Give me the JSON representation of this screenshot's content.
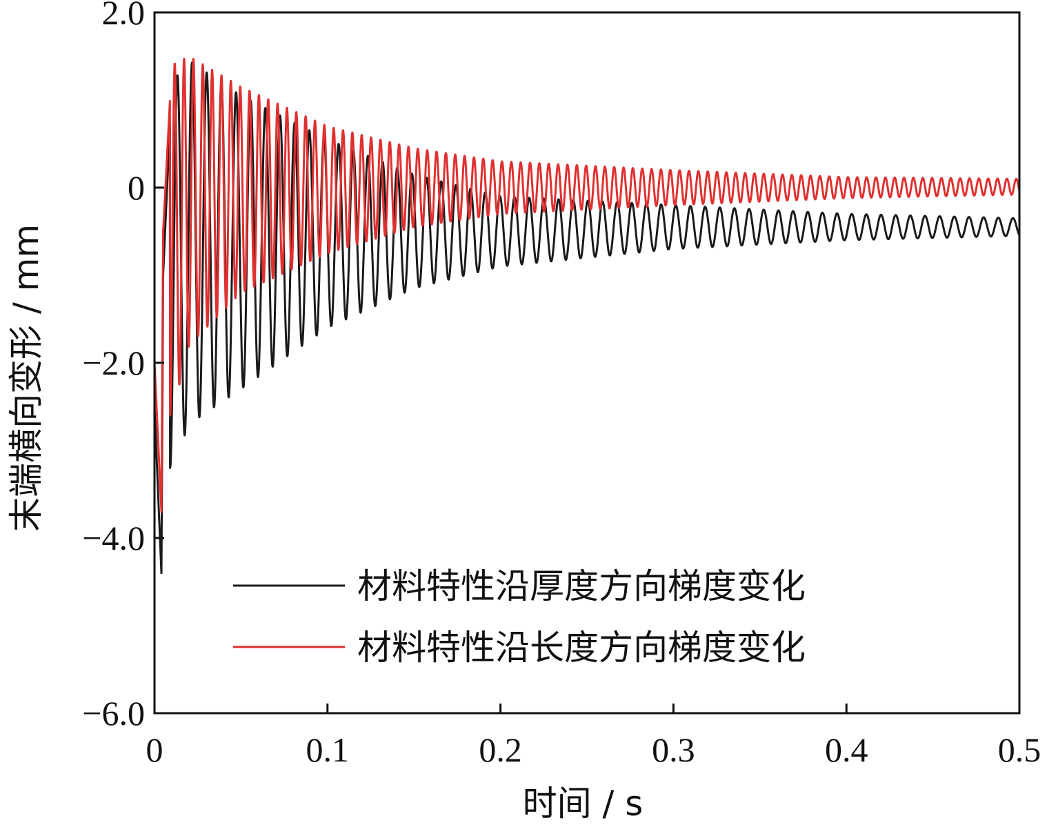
{
  "chart_data": {
    "type": "line",
    "title": "",
    "xlabel": "时间 / s",
    "ylabel": "末端横向变形 / mm",
    "xlim": [
      0,
      0.5
    ],
    "ylim": [
      -6.0,
      2.0
    ],
    "x_ticks": [
      "0",
      "0.1",
      "0.2",
      "0.3",
      "0.4",
      "0.5"
    ],
    "y_ticks": [
      "2.0",
      "0",
      "−2.0",
      "−4.0",
      "−6.0"
    ],
    "grid": false,
    "legend_position": "lower-right",
    "series": [
      {
        "name": "材料特性沿厚度方向梯度变化",
        "color": "#1a1a1a",
        "oscillation_frequency_hz": 118,
        "points": [
          {
            "x": 0.0,
            "y": -2.5
          },
          {
            "x": 0.004,
            "y": -4.4
          },
          {
            "x": 0.005,
            "y": -1.0
          },
          {
            "x": 0.01,
            "y": 1.2
          },
          {
            "x": 0.02,
            "y": 1.45
          },
          {
            "x": 0.05,
            "y": 1.05
          },
          {
            "x": 0.1,
            "y": 0.55
          },
          {
            "x": 0.15,
            "y": 0.15
          },
          {
            "x": 0.2,
            "y": -0.1
          },
          {
            "x": 0.3,
            "y": -0.2
          },
          {
            "x": 0.4,
            "y": -0.3
          },
          {
            "x": 0.5,
            "y": -0.35
          }
        ],
        "lower_envelope": [
          {
            "x": 0.01,
            "y": -3.2
          },
          {
            "x": 0.02,
            "y": -2.7
          },
          {
            "x": 0.05,
            "y": -2.3
          },
          {
            "x": 0.1,
            "y": -1.6
          },
          {
            "x": 0.15,
            "y": -1.15
          },
          {
            "x": 0.2,
            "y": -0.9
          },
          {
            "x": 0.3,
            "y": -0.7
          },
          {
            "x": 0.4,
            "y": -0.6
          },
          {
            "x": 0.5,
            "y": -0.55
          }
        ]
      },
      {
        "name": "材料特性沿长度方向梯度变化",
        "color": "#e03030",
        "oscillation_frequency_hz": 185,
        "points": [
          {
            "x": 0.0,
            "y": -2.0
          },
          {
            "x": 0.004,
            "y": -3.7
          },
          {
            "x": 0.005,
            "y": -0.5
          },
          {
            "x": 0.01,
            "y": 1.4
          },
          {
            "x": 0.02,
            "y": 1.5
          },
          {
            "x": 0.05,
            "y": 1.15
          },
          {
            "x": 0.1,
            "y": 0.7
          },
          {
            "x": 0.15,
            "y": 0.45
          },
          {
            "x": 0.2,
            "y": 0.3
          },
          {
            "x": 0.3,
            "y": 0.2
          },
          {
            "x": 0.4,
            "y": 0.12
          },
          {
            "x": 0.5,
            "y": 0.1
          }
        ],
        "lower_envelope": [
          {
            "x": 0.01,
            "y": -2.6
          },
          {
            "x": 0.02,
            "y": -1.8
          },
          {
            "x": 0.05,
            "y": -1.2
          },
          {
            "x": 0.1,
            "y": -0.75
          },
          {
            "x": 0.15,
            "y": -0.45
          },
          {
            "x": 0.2,
            "y": -0.3
          },
          {
            "x": 0.3,
            "y": -0.2
          },
          {
            "x": 0.4,
            "y": -0.12
          },
          {
            "x": 0.5,
            "y": -0.08
          }
        ]
      }
    ]
  }
}
